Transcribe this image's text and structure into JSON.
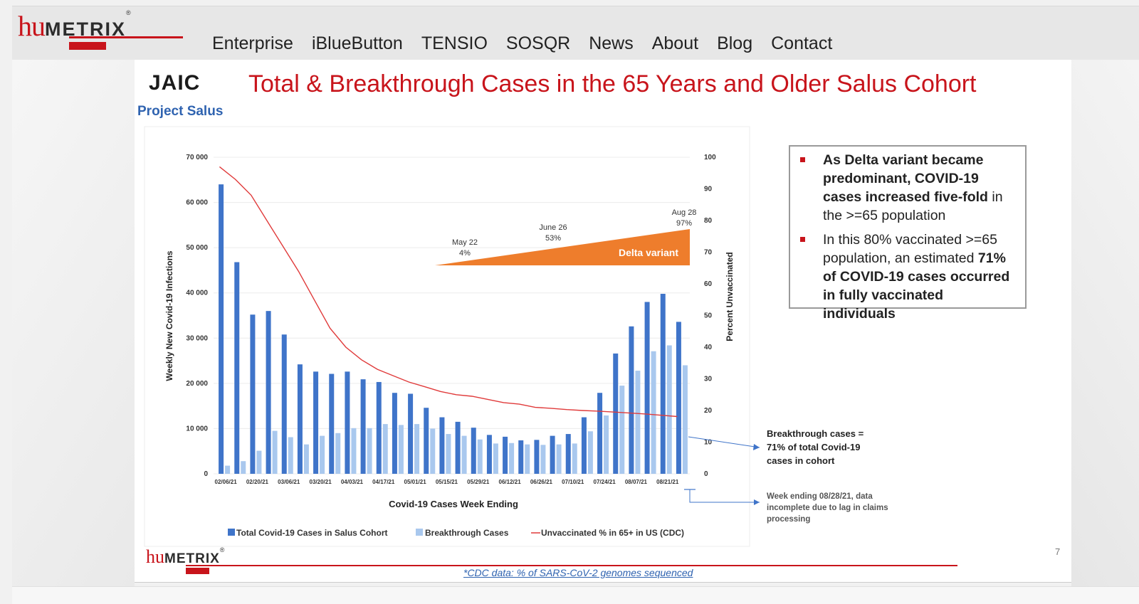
{
  "site": {
    "logo": {
      "hu": "hu",
      "metrix": "METRIX",
      "reg": "®"
    },
    "nav": [
      "Enterprise",
      "iBlueButton",
      "TENSIO",
      "SOSQR",
      "News",
      "About",
      "Blog",
      "Contact"
    ]
  },
  "slide": {
    "org_logo": "JAIC",
    "project": "Project Salus",
    "title": "Total & Breakthrough Cases in the 65 Years and Older Salus Cohort",
    "page_number": "7",
    "footnote": "*CDC data: % of SARS-CoV-2 genomes sequenced",
    "bullets": [
      {
        "parts": [
          {
            "text": "As Delta variant became predominant, COVID-19 cases increased five-fold",
            "bold": true
          },
          {
            "text": " in the >=65 population",
            "bold": false
          }
        ]
      },
      {
        "parts": [
          {
            "text": "In this 80% vaccinated >=65 population, an estimated ",
            "bold": false
          },
          {
            "text": "71% of COVID-19 cases occurred in fully vaccinated individuals",
            "bold": true
          }
        ]
      }
    ]
  },
  "chart_data": {
    "type": "bar",
    "title": "",
    "xlabel": "Covid-19 Cases Week Ending",
    "ylabel": "Weekly New Covid-19 Infections",
    "y2label": "Percent Unvaccinated",
    "ylim": [
      0,
      70000
    ],
    "y2lim": [
      0,
      100
    ],
    "y_ticks": [
      "0",
      "10 000",
      "20 000",
      "30 000",
      "40 000",
      "50 000",
      "60 000",
      "70 000"
    ],
    "y2_ticks": [
      "0",
      "10",
      "20",
      "30",
      "40",
      "50",
      "60",
      "70",
      "80",
      "90",
      "100"
    ],
    "tick_labels": [
      "02/06/21",
      "02/20/21",
      "03/06/21",
      "03/20/21",
      "04/03/21",
      "04/17/21",
      "05/01/21",
      "05/15/21",
      "05/29/21",
      "06/12/21",
      "06/26/21",
      "07/10/21",
      "07/24/21",
      "08/07/21",
      "08/21/21"
    ],
    "weeks": 30,
    "series": [
      {
        "name": "Total Covid-19 Cases in Salus Cohort",
        "color": "#3f74c9",
        "values": [
          64000,
          46800,
          35200,
          36000,
          30800,
          24200,
          22600,
          22100,
          22600,
          20900,
          20300,
          17900,
          17700,
          14600,
          12500,
          11500,
          10200,
          8600,
          8200,
          7400,
          7500,
          8400,
          8800,
          12500,
          17900,
          26600,
          32600,
          38000,
          39800,
          33600
        ]
      },
      {
        "name": "Breakthrough Cases",
        "color": "#a9c8ee",
        "values": [
          1800,
          2800,
          5100,
          9500,
          8100,
          6500,
          8400,
          9000,
          10100,
          10100,
          11000,
          10800,
          11000,
          10000,
          8800,
          8400,
          7600,
          6700,
          6800,
          6500,
          6400,
          6500,
          6700,
          9400,
          12900,
          19500,
          22800,
          27100,
          28400,
          24000
        ]
      },
      {
        "name": "Unvaccinated % in 65+ in US (CDC)",
        "color": "#e03a3a",
        "values": [
          97,
          93,
          88,
          80,
          72,
          64,
          55,
          46,
          40,
          36,
          33,
          31,
          29,
          27.5,
          26,
          25,
          24.5,
          23.5,
          22.5,
          22,
          21,
          20.7,
          20.3,
          20,
          19.8,
          19.5,
          19.2,
          18.9,
          18.5,
          18.1
        ]
      }
    ],
    "annotations": {
      "delta_label": "Delta variant",
      "may": {
        "date": "May 22",
        "pct": "4%"
      },
      "june": {
        "date": "June 26",
        "pct": "53%"
      },
      "aug": {
        "date": "Aug 28",
        "pct": "97%"
      },
      "breakthrough_note": [
        "Breakthrough cases =",
        "71% of total Covid-19",
        "cases in cohort"
      ],
      "incomplete_note": [
        "Week ending 08/28/21, data",
        "incomplete due to lag in claims",
        "processing"
      ]
    }
  }
}
